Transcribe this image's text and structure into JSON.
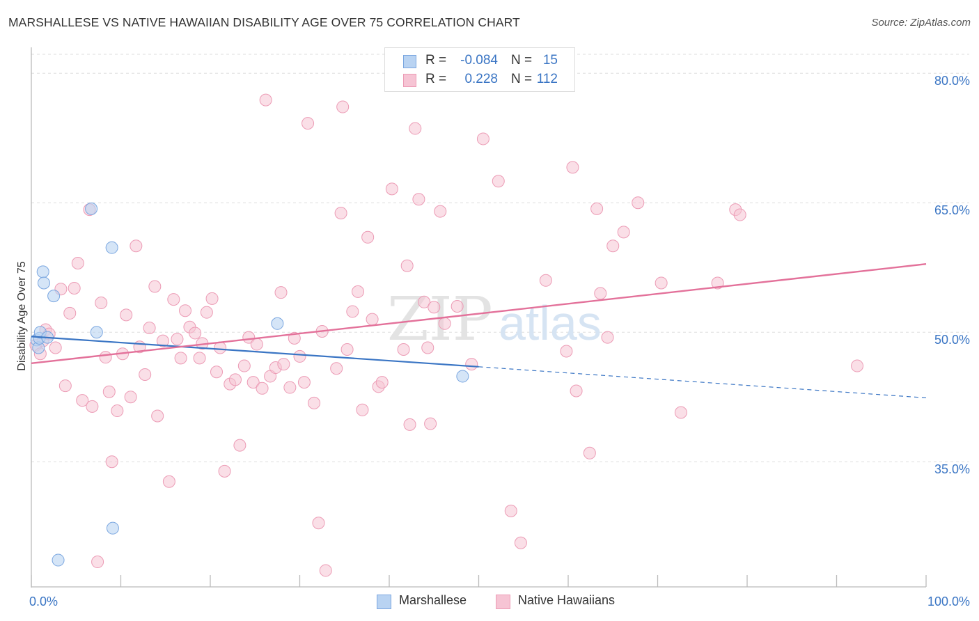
{
  "title": "MARSHALLESE VS NATIVE HAWAIIAN DISABILITY AGE OVER 75 CORRELATION CHART",
  "source": "Source: ZipAtlas.com",
  "watermark": {
    "zip": "ZIP",
    "atlas": "atlas"
  },
  "legend": {
    "rows": [
      {
        "r_label": "R =",
        "r_value": "-0.084",
        "n_label": "N =",
        "n_value": "15"
      },
      {
        "r_label": "R =",
        "r_value": "0.228",
        "n_label": "N =",
        "n_value": "112"
      }
    ]
  },
  "bottom_legend": [
    "Marshallese",
    "Native Hawaiians"
  ],
  "colors": {
    "marshallese_fill": "#b9d3f2",
    "marshallese_stroke": "#7aa6e0",
    "marshallese_line": "#3a75c4",
    "hawaiian_fill": "#f6c4d4",
    "hawaiian_stroke": "#ec9bb5",
    "hawaiian_line": "#e3719a",
    "grid": "#dddddd",
    "axis_label": "#3a75c4"
  },
  "chart_data": {
    "type": "scatter",
    "title": "MARSHALLESE VS NATIVE HAWAIIAN DISABILITY AGE OVER 75 CORRELATION CHART",
    "xlabel": "",
    "ylabel": "Disability Age Over 75",
    "xlim": [
      0,
      100
    ],
    "ylim": [
      20.5,
      83
    ],
    "x_tick_labels": [
      "0.0%",
      "100.0%"
    ],
    "y_ticks": [
      35,
      50,
      65,
      80
    ],
    "y_tick_labels": [
      "35.0%",
      "50.0%",
      "65.0%",
      "80.0%"
    ],
    "legend_position": "top-center",
    "series": [
      {
        "name": "Marshallese",
        "r": -0.084,
        "n": 15,
        "points": [
          [
            0.6,
            49.1
          ],
          [
            0.8,
            48.2
          ],
          [
            0.9,
            49.3
          ],
          [
            1.0,
            50.0
          ],
          [
            1.8,
            49.4
          ],
          [
            1.3,
            57.0
          ],
          [
            1.4,
            55.7
          ],
          [
            2.5,
            54.2
          ],
          [
            6.7,
            64.3
          ],
          [
            7.3,
            50.0
          ],
          [
            9.0,
            59.8
          ],
          [
            27.5,
            51.0
          ],
          [
            9.1,
            27.3
          ],
          [
            3.0,
            23.6
          ],
          [
            48.2,
            44.9
          ]
        ],
        "trend": {
          "x0": 0,
          "y0": 49.5,
          "x1": 50,
          "y1": 46.0,
          "dash_x1": 100,
          "dash_y1": 42.4
        }
      },
      {
        "name": "Native Hawaiians",
        "r": 0.228,
        "n": 112,
        "points": [
          [
            0.5,
            48.5
          ],
          [
            1.0,
            47.5
          ],
          [
            1.3,
            49.0
          ],
          [
            1.6,
            50.3
          ],
          [
            2.0,
            49.8
          ],
          [
            2.7,
            48.2
          ],
          [
            3.3,
            55.0
          ],
          [
            3.8,
            43.8
          ],
          [
            4.3,
            52.2
          ],
          [
            4.8,
            55.1
          ],
          [
            5.2,
            58.0
          ],
          [
            5.7,
            42.1
          ],
          [
            6.5,
            64.2
          ],
          [
            6.8,
            41.4
          ],
          [
            7.4,
            23.4
          ],
          [
            7.8,
            53.4
          ],
          [
            8.3,
            47.1
          ],
          [
            8.7,
            43.1
          ],
          [
            9.0,
            35.0
          ],
          [
            9.6,
            40.9
          ],
          [
            10.2,
            47.5
          ],
          [
            10.6,
            52.0
          ],
          [
            11.1,
            42.5
          ],
          [
            11.7,
            60.0
          ],
          [
            12.1,
            48.3
          ],
          [
            12.7,
            45.1
          ],
          [
            13.2,
            50.5
          ],
          [
            13.8,
            55.3
          ],
          [
            14.1,
            40.3
          ],
          [
            14.7,
            49.0
          ],
          [
            15.4,
            32.7
          ],
          [
            15.9,
            53.8
          ],
          [
            16.3,
            49.2
          ],
          [
            16.7,
            47.0
          ],
          [
            17.2,
            52.5
          ],
          [
            17.7,
            50.6
          ],
          [
            18.3,
            49.9
          ],
          [
            18.8,
            47.0
          ],
          [
            19.1,
            48.7
          ],
          [
            19.6,
            52.3
          ],
          [
            20.2,
            53.9
          ],
          [
            20.7,
            45.4
          ],
          [
            21.1,
            48.2
          ],
          [
            21.6,
            33.9
          ],
          [
            22.2,
            44.0
          ],
          [
            22.8,
            44.5
          ],
          [
            23.3,
            36.9
          ],
          [
            23.8,
            46.1
          ],
          [
            24.3,
            49.4
          ],
          [
            24.8,
            44.2
          ],
          [
            25.2,
            48.6
          ],
          [
            25.8,
            43.5
          ],
          [
            26.2,
            76.9
          ],
          [
            26.7,
            44.9
          ],
          [
            27.3,
            45.9
          ],
          [
            27.9,
            54.6
          ],
          [
            28.2,
            46.3
          ],
          [
            28.9,
            43.6
          ],
          [
            29.4,
            49.3
          ],
          [
            30.0,
            47.2
          ],
          [
            30.5,
            44.2
          ],
          [
            30.9,
            74.2
          ],
          [
            31.6,
            41.8
          ],
          [
            32.1,
            27.9
          ],
          [
            32.5,
            50.1
          ],
          [
            32.9,
            22.4
          ],
          [
            34.1,
            45.8
          ],
          [
            34.6,
            63.8
          ],
          [
            34.8,
            76.1
          ],
          [
            35.3,
            48.0
          ],
          [
            35.9,
            52.4
          ],
          [
            36.5,
            54.7
          ],
          [
            37.0,
            41.0
          ],
          [
            37.6,
            61.0
          ],
          [
            38.1,
            51.5
          ],
          [
            38.8,
            43.7
          ],
          [
            39.2,
            44.2
          ],
          [
            40.3,
            66.6
          ],
          [
            41.6,
            48.0
          ],
          [
            42.0,
            57.7
          ],
          [
            42.3,
            39.3
          ],
          [
            42.9,
            73.6
          ],
          [
            43.3,
            65.4
          ],
          [
            43.9,
            53.5
          ],
          [
            44.3,
            48.2
          ],
          [
            44.6,
            39.4
          ],
          [
            45.0,
            52.9
          ],
          [
            45.7,
            64.0
          ],
          [
            46.2,
            51.0
          ],
          [
            47.6,
            53.0
          ],
          [
            49.2,
            46.3
          ],
          [
            50.5,
            72.4
          ],
          [
            52.2,
            67.5
          ],
          [
            53.6,
            29.3
          ],
          [
            54.7,
            25.6
          ],
          [
            57.5,
            56.0
          ],
          [
            59.8,
            47.8
          ],
          [
            60.5,
            69.1
          ],
          [
            60.9,
            43.2
          ],
          [
            62.4,
            36.0
          ],
          [
            63.2,
            64.3
          ],
          [
            63.6,
            54.5
          ],
          [
            64.4,
            49.4
          ],
          [
            65.0,
            60.0
          ],
          [
            66.2,
            61.6
          ],
          [
            67.8,
            65.0
          ],
          [
            70.4,
            55.7
          ],
          [
            72.6,
            40.7
          ],
          [
            76.7,
            55.7
          ],
          [
            78.7,
            64.2
          ],
          [
            79.2,
            63.6
          ],
          [
            92.3,
            46.1
          ]
        ],
        "trend": {
          "x0": 0,
          "y0": 46.4,
          "x1": 100,
          "y1": 57.9
        }
      }
    ]
  }
}
